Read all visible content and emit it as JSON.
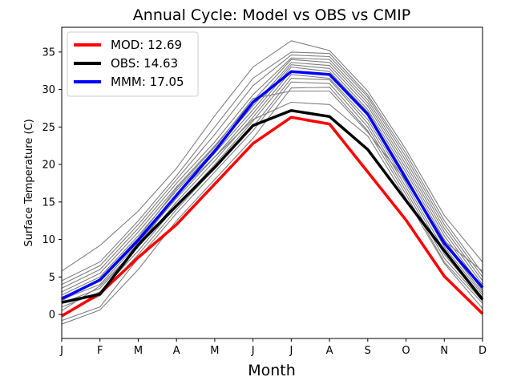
{
  "chart_data": {
    "type": "line",
    "title": "Annual Cycle: Model vs OBS vs CMIP",
    "xlabel": "Month",
    "ylabel": "Surface Temperature (C)",
    "categories": [
      "J",
      "F",
      "M",
      "A",
      "M",
      "J",
      "J",
      "A",
      "S",
      "O",
      "N",
      "D"
    ],
    "ylim": [
      -3.2,
      38.3
    ],
    "yticks": [
      0,
      5,
      10,
      15,
      20,
      25,
      30,
      35
    ],
    "grid": false,
    "legend_position": "top-left",
    "ensemble": {
      "color": "#808080",
      "members": [
        [
          -1.3,
          0.6,
          6.0,
          12.5,
          18.0,
          23.5,
          30.2,
          30.3,
          24.5,
          16.0,
          7.0,
          1.5
        ],
        [
          -0.8,
          1.0,
          7.5,
          13.5,
          19.0,
          24.5,
          31.0,
          30.8,
          25.0,
          16.5,
          7.5,
          1.8
        ],
        [
          0.0,
          2.5,
          8.0,
          14.0,
          19.5,
          25.0,
          31.5,
          31.3,
          25.5,
          17.0,
          8.0,
          2.0
        ],
        [
          1.0,
          3.0,
          8.5,
          14.5,
          20.0,
          25.8,
          32.0,
          31.5,
          26.0,
          17.5,
          8.5,
          2.3
        ],
        [
          1.5,
          3.5,
          9.0,
          15.0,
          20.5,
          26.3,
          32.5,
          32.0,
          26.5,
          18.0,
          9.0,
          2.6
        ],
        [
          2.0,
          4.0,
          9.5,
          15.5,
          21.0,
          26.8,
          33.0,
          32.4,
          27.0,
          18.5,
          9.5,
          2.9
        ],
        [
          2.3,
          4.5,
          10.0,
          16.0,
          21.5,
          27.3,
          33.3,
          32.8,
          27.3,
          19.0,
          10.0,
          3.2
        ],
        [
          2.6,
          5.0,
          10.5,
          16.5,
          22.0,
          27.8,
          33.6,
          33.2,
          27.8,
          19.5,
          10.5,
          3.5
        ],
        [
          3.0,
          5.5,
          11.0,
          17.0,
          22.5,
          28.5,
          34.0,
          33.6,
          28.2,
          20.0,
          11.0,
          4.0
        ],
        [
          3.5,
          6.0,
          11.5,
          17.5,
          23.0,
          29.3,
          34.2,
          34.0,
          28.6,
          20.5,
          11.5,
          4.5
        ],
        [
          4.0,
          6.5,
          12.0,
          18.0,
          24.0,
          30.5,
          34.6,
          34.4,
          29.0,
          21.0,
          12.0,
          5.0
        ],
        [
          4.5,
          7.0,
          12.5,
          18.5,
          25.0,
          31.5,
          35.0,
          34.8,
          29.3,
          21.5,
          12.5,
          5.5
        ],
        [
          5.8,
          9.2,
          13.8,
          19.5,
          26.5,
          33.0,
          36.5,
          35.2,
          29.8,
          22.0,
          13.2,
          7.0
        ],
        [
          0.5,
          3.8,
          9.0,
          16.0,
          21.0,
          26.0,
          28.3,
          28.0,
          23.8,
          15.5,
          6.8,
          0.8
        ],
        [
          1.8,
          4.8,
          10.2,
          16.8,
          22.3,
          28.8,
          29.8,
          29.8,
          24.3,
          17.8,
          9.8,
          5.8
        ]
      ]
    },
    "series": [
      {
        "name": "MOD",
        "legend_label": "MOD: 12.69",
        "color": "#ff0000",
        "values": [
          -0.2,
          2.8,
          7.6,
          12.0,
          17.4,
          22.8,
          26.3,
          25.4,
          19.0,
          12.6,
          5.1,
          0.1
        ]
      },
      {
        "name": "OBS",
        "legend_label": "OBS: 14.63",
        "color": "#000000",
        "values": [
          1.6,
          2.7,
          9.3,
          14.5,
          19.6,
          25.2,
          27.2,
          26.4,
          22.0,
          15.2,
          8.5,
          2.0
        ]
      },
      {
        "name": "MMM",
        "legend_label": "MMM: 17.05",
        "color": "#0000ff",
        "values": [
          2.1,
          4.6,
          9.9,
          15.9,
          21.8,
          28.3,
          32.4,
          32.0,
          26.7,
          18.1,
          9.5,
          3.6
        ]
      }
    ]
  }
}
